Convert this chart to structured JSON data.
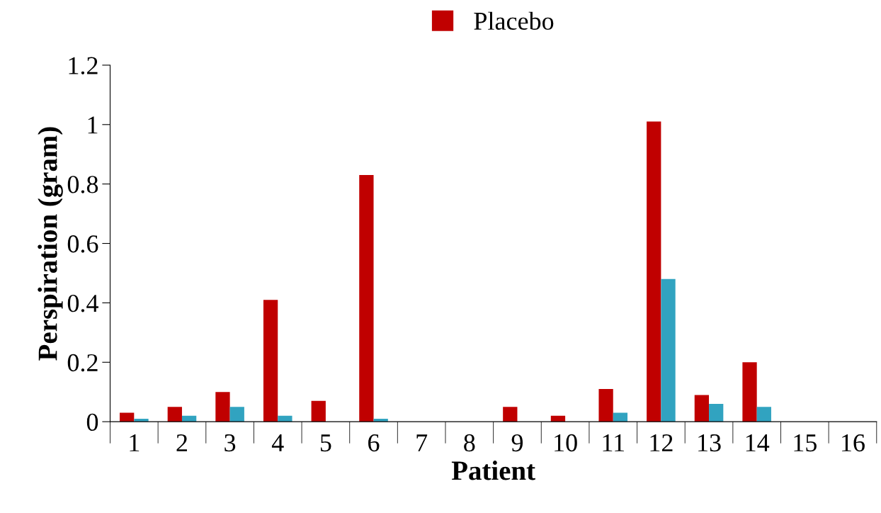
{
  "chart_data": {
    "type": "bar",
    "xlabel": "Patient",
    "ylabel": "Perspiration (gram)",
    "categories": [
      "1",
      "2",
      "3",
      "4",
      "5",
      "6",
      "7",
      "8",
      "9",
      "10",
      "11",
      "12",
      "13",
      "14",
      "15",
      "16"
    ],
    "series": [
      {
        "name": "Placebo",
        "color": "#c00000",
        "values": [
          0.03,
          0.05,
          0.1,
          0.41,
          0.07,
          0.83,
          0,
          0,
          0.05,
          0.02,
          0.11,
          1.01,
          0.09,
          0.2,
          0,
          0
        ]
      },
      {
        "color": "#31a3c0",
        "values": [
          0.01,
          0.02,
          0.05,
          0.02,
          0,
          0.01,
          0,
          0,
          0,
          0,
          0.03,
          0.48,
          0.06,
          0.05,
          0,
          0
        ]
      }
    ],
    "ylim": [
      0,
      1.2
    ],
    "yticks": [
      0,
      0.2,
      0.4,
      0.6,
      0.8,
      1,
      1.2
    ],
    "grid": false,
    "legend": "top"
  }
}
